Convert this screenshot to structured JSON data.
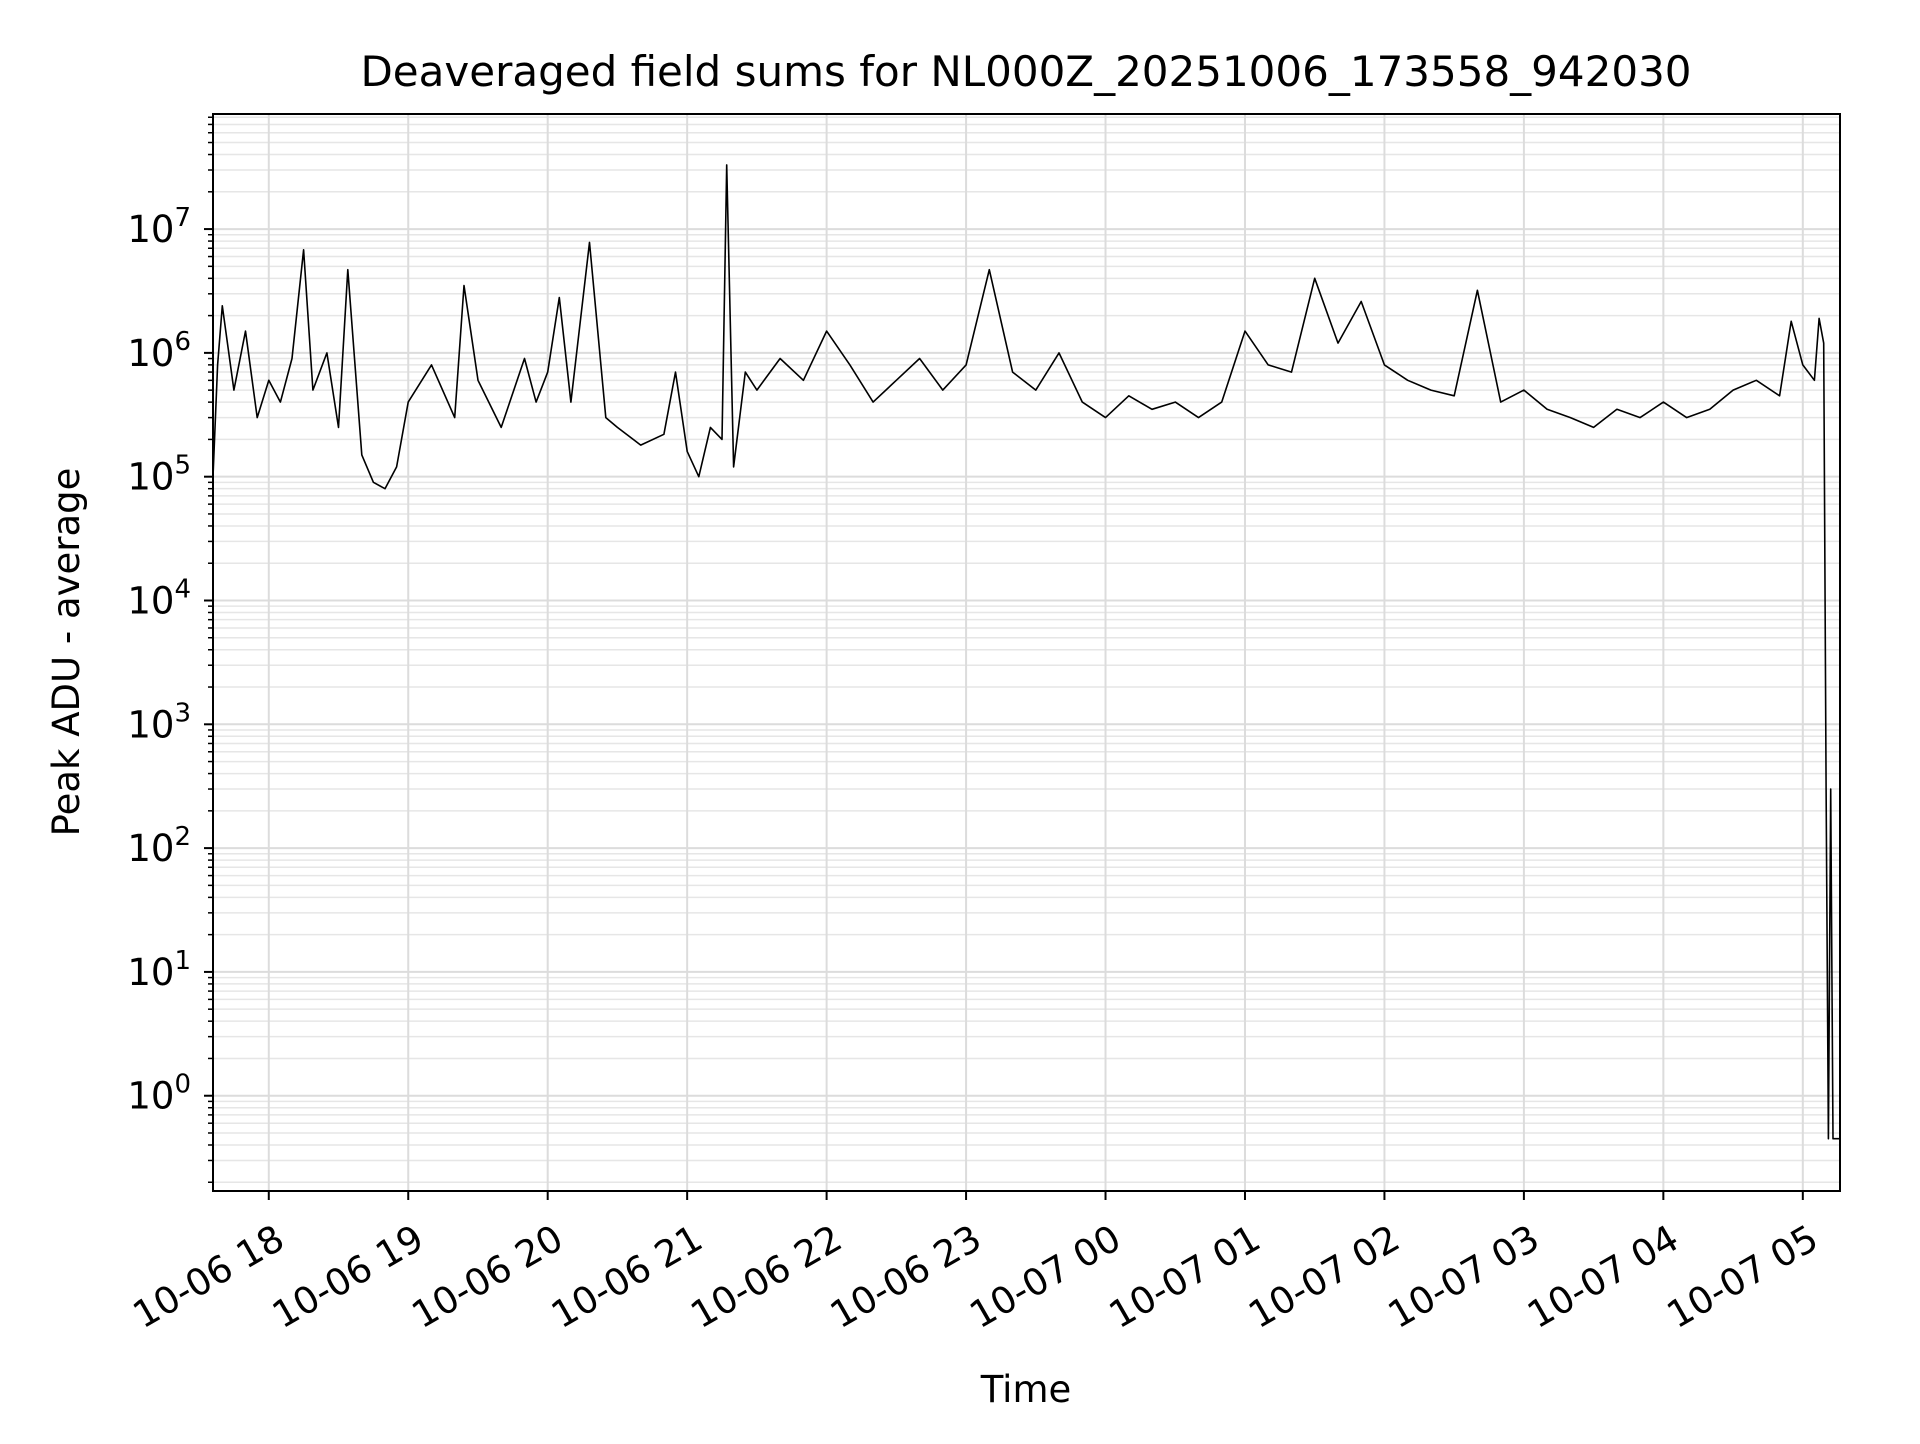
{
  "chart_data": {
    "type": "line",
    "title": "Deaveraged field sums for NL000Z_20251006_173558_942030",
    "xlabel": "Time",
    "ylabel": "Peak ADU - average",
    "yscale": "log",
    "grid": true,
    "line_color": "#000000",
    "x_ticks": [
      {
        "value": "2025-10-06 18:00",
        "label": "10-06 18"
      },
      {
        "value": "2025-10-06 19:00",
        "label": "10-06 19"
      },
      {
        "value": "2025-10-06 20:00",
        "label": "10-06 20"
      },
      {
        "value": "2025-10-06 21:00",
        "label": "10-06 21"
      },
      {
        "value": "2025-10-06 22:00",
        "label": "10-06 22"
      },
      {
        "value": "2025-10-06 23:00",
        "label": "10-06 23"
      },
      {
        "value": "2025-10-07 00:00",
        "label": "10-07 00"
      },
      {
        "value": "2025-10-07 01:00",
        "label": "10-07 01"
      },
      {
        "value": "2025-10-07 02:00",
        "label": "10-07 02"
      },
      {
        "value": "2025-10-07 03:00",
        "label": "10-07 03"
      },
      {
        "value": "2025-10-07 04:00",
        "label": "10-07 04"
      },
      {
        "value": "2025-10-07 05:00",
        "label": "10-07 05"
      }
    ],
    "y_ticks": [
      {
        "value": 1,
        "base": "10",
        "exp": "0"
      },
      {
        "value": 10,
        "base": "10",
        "exp": "1"
      },
      {
        "value": 100,
        "base": "10",
        "exp": "2"
      },
      {
        "value": 1000,
        "base": "10",
        "exp": "3"
      },
      {
        "value": 10000,
        "base": "10",
        "exp": "4"
      },
      {
        "value": 100000,
        "base": "10",
        "exp": "5"
      },
      {
        "value": 1000000,
        "base": "10",
        "exp": "6"
      },
      {
        "value": 10000000,
        "base": "10",
        "exp": "7"
      }
    ],
    "xlim": [
      "2025-10-06 17:36",
      "2025-10-07 05:16"
    ],
    "ylim": [
      0.17,
      85000000
    ],
    "series": [
      {
        "name": "",
        "x": [
          "2025-10-06 17:36",
          "2025-10-06 17:38",
          "2025-10-06 17:40",
          "2025-10-06 17:45",
          "2025-10-06 17:50",
          "2025-10-06 17:55",
          "2025-10-06 18:00",
          "2025-10-06 18:05",
          "2025-10-06 18:10",
          "2025-10-06 18:15",
          "2025-10-06 18:19",
          "2025-10-06 18:25",
          "2025-10-06 18:30",
          "2025-10-06 18:34",
          "2025-10-06 18:40",
          "2025-10-06 18:45",
          "2025-10-06 18:50",
          "2025-10-06 18:55",
          "2025-10-06 19:00",
          "2025-10-06 19:10",
          "2025-10-06 19:20",
          "2025-10-06 19:24",
          "2025-10-06 19:30",
          "2025-10-06 19:40",
          "2025-10-06 19:50",
          "2025-10-06 19:55",
          "2025-10-06 20:00",
          "2025-10-06 20:05",
          "2025-10-06 20:10",
          "2025-10-06 20:18",
          "2025-10-06 20:25",
          "2025-10-06 20:30",
          "2025-10-06 20:40",
          "2025-10-06 20:50",
          "2025-10-06 20:55",
          "2025-10-06 21:00",
          "2025-10-06 21:05",
          "2025-10-06 21:10",
          "2025-10-06 21:15",
          "2025-10-06 21:17",
          "2025-10-06 21:20",
          "2025-10-06 21:25",
          "2025-10-06 21:30",
          "2025-10-06 21:40",
          "2025-10-06 21:50",
          "2025-10-06 22:00",
          "2025-10-06 22:10",
          "2025-10-06 22:20",
          "2025-10-06 22:30",
          "2025-10-06 22:40",
          "2025-10-06 22:50",
          "2025-10-06 23:00",
          "2025-10-06 23:10",
          "2025-10-06 23:20",
          "2025-10-06 23:30",
          "2025-10-06 23:40",
          "2025-10-06 23:50",
          "2025-10-07 00:00",
          "2025-10-07 00:10",
          "2025-10-07 00:20",
          "2025-10-07 00:30",
          "2025-10-07 00:40",
          "2025-10-07 00:50",
          "2025-10-07 01:00",
          "2025-10-07 01:10",
          "2025-10-07 01:20",
          "2025-10-07 01:30",
          "2025-10-07 01:40",
          "2025-10-07 01:50",
          "2025-10-07 02:00",
          "2025-10-07 02:10",
          "2025-10-07 02:20",
          "2025-10-07 02:30",
          "2025-10-07 02:40",
          "2025-10-07 02:50",
          "2025-10-07 03:00",
          "2025-10-07 03:10",
          "2025-10-07 03:20",
          "2025-10-07 03:30",
          "2025-10-07 03:40",
          "2025-10-07 03:50",
          "2025-10-07 04:00",
          "2025-10-07 04:10",
          "2025-10-07 04:20",
          "2025-10-07 04:30",
          "2025-10-07 04:40",
          "2025-10-07 04:50",
          "2025-10-07 04:55",
          "2025-10-07 05:00",
          "2025-10-07 05:05",
          "2025-10-07 05:07",
          "2025-10-07 05:09",
          "2025-10-07 05:10",
          "2025-10-07 05:11",
          "2025-10-07 05:12",
          "2025-10-07 05:13",
          "2025-10-07 05:14",
          "2025-10-07 05:16"
        ],
        "y": [
          100000,
          800000,
          2400000,
          500000,
          1500000,
          300000,
          600000,
          400000,
          900000,
          6800000,
          500000,
          1000000,
          250000,
          4700000,
          150000,
          90000,
          80000,
          120000,
          400000,
          800000,
          300000,
          3500000,
          600000,
          250000,
          900000,
          400000,
          700000,
          2800000,
          400000,
          7800000,
          300000,
          250000,
          180000,
          220000,
          700000,
          160000,
          100000,
          250000,
          200000,
          33000000,
          120000,
          700000,
          500000,
          900000,
          600000,
          1500000,
          800000,
          400000,
          600000,
          900000,
          500000,
          800000,
          4700000,
          700000,
          500000,
          1000000,
          400000,
          300000,
          450000,
          350000,
          400000,
          300000,
          400000,
          1500000,
          800000,
          700000,
          4000000,
          1200000,
          2600000,
          800000,
          600000,
          500000,
          450000,
          3200000,
          400000,
          500000,
          350000,
          300000,
          250000,
          350000,
          300000,
          400000,
          300000,
          350000,
          500000,
          600000,
          450000,
          1800000,
          800000,
          600000,
          1900000,
          1200000,
          300,
          0.45,
          300,
          0.45,
          0.45,
          0.45
        ]
      }
    ]
  }
}
